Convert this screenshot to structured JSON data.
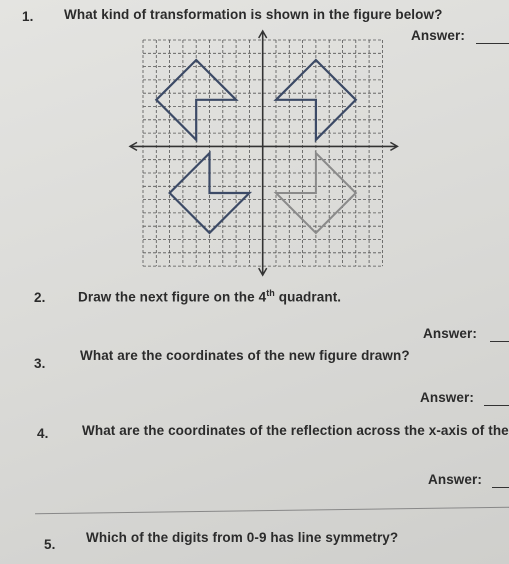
{
  "questions": [
    {
      "number": "1.",
      "text": "What kind of transformation is shown in the figure below?",
      "answer_label": "Answer:"
    },
    {
      "number": "2.",
      "text": "Draw the next figure on the 4",
      "superscript": "th",
      "text_after": "quadrant.",
      "answer_label": "Answer:"
    },
    {
      "number": "3.",
      "text": "What are the coordinates of the new figure drawn?",
      "answer_label": "Answer:"
    },
    {
      "number": "4.",
      "text": "What are the coordinates of the reflection across the x-axis of the n",
      "answer_label": "Answer:"
    },
    {
      "number": "5.",
      "text": "Which of the digits from 0-9 has line symmetry?"
    }
  ]
}
